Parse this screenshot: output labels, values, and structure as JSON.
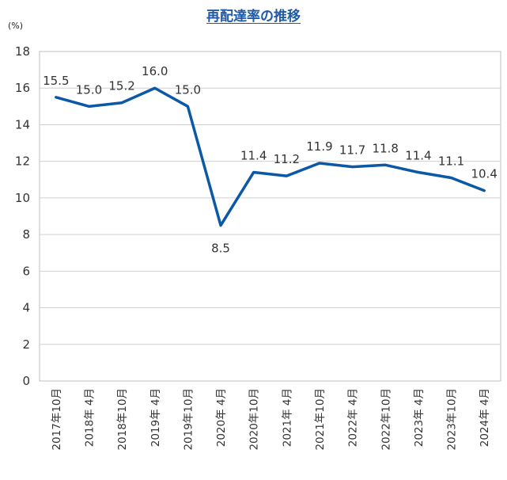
{
  "chart_data": {
    "type": "line",
    "title": "再配達率の推移",
    "y_unit_label": "(%)",
    "ylim": [
      0,
      18
    ],
    "y_ticks": [
      "0",
      "2",
      "4",
      "6",
      "8",
      "10",
      "12",
      "14",
      "16",
      "18"
    ],
    "grid": true,
    "categories": [
      "2017年10月",
      "2018年 4月",
      "2018年10月",
      "2019年 4月",
      "2019年10月",
      "2020年 4月",
      "2020年10月",
      "2021年 4月",
      "2021年10月",
      "2022年 4月",
      "2022年10月",
      "2023年 4月",
      "2023年10月",
      "2024年 4月"
    ],
    "values": [
      15.5,
      15.0,
      15.2,
      16.0,
      15.0,
      8.5,
      11.4,
      11.2,
      11.9,
      11.7,
      11.8,
      11.4,
      11.1,
      10.4
    ],
    "data_labels": [
      "15.5",
      "15.0",
      "15.2",
      "16.0",
      "15.0",
      "8.5",
      "11.4",
      "11.2",
      "11.9",
      "11.7",
      "11.8",
      "11.4",
      "11.1",
      "10.4"
    ],
    "line_color": "#0a58a6"
  }
}
